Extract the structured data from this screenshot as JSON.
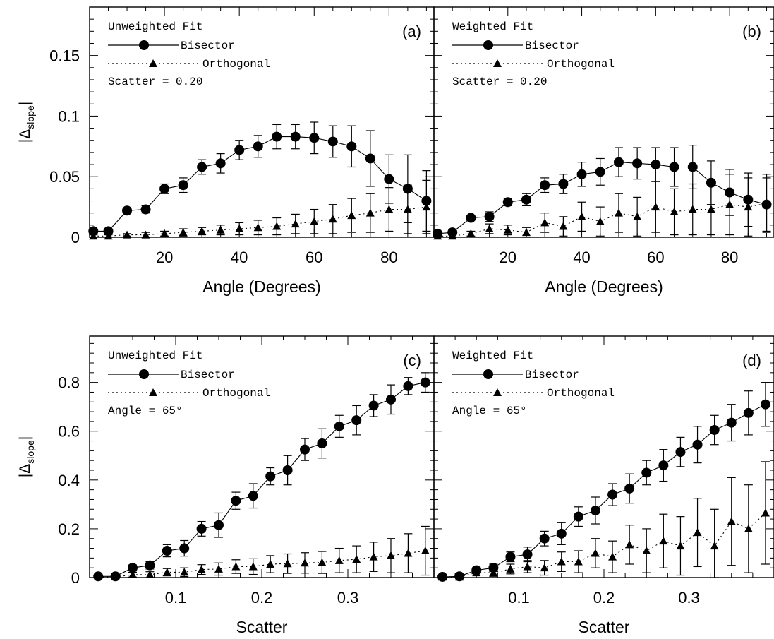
{
  "y_axis_label": {
    "prefix": "|Δ",
    "subscript": "slope",
    "suffix": "|"
  },
  "chart_data": [
    {
      "panel_label": "(a)",
      "type": "line",
      "fit_label": "Unweighted Fit",
      "condition_label": "Scatter = 0.20",
      "xlabel": "Angle (Degrees)",
      "ylabel_shown": true,
      "xlim": [
        0,
        92
      ],
      "ylim": [
        0,
        0.19
      ],
      "xticks": [
        20,
        40,
        60,
        80
      ],
      "xtick_labels": [
        "20",
        "40",
        "60",
        "80"
      ],
      "yticks": [
        0,
        0.05,
        0.1,
        0.15
      ],
      "ytick_labels": [
        "0",
        "0.05",
        "0.1",
        "0.15"
      ],
      "x": [
        1,
        5,
        10,
        15,
        20,
        25,
        30,
        35,
        40,
        45,
        50,
        55,
        60,
        65,
        70,
        75,
        80,
        85,
        90
      ],
      "series": [
        {
          "name": "Bisector",
          "marker": "circle",
          "line": "solid",
          "values": [
            0.005,
            0.005,
            0.022,
            0.023,
            0.04,
            0.043,
            0.058,
            0.061,
            0.072,
            0.075,
            0.083,
            0.083,
            0.082,
            0.079,
            0.075,
            0.065,
            0.048,
            0.04,
            0.03
          ],
          "errors": [
            0.002,
            0.002,
            0.002,
            0.003,
            0.004,
            0.006,
            0.006,
            0.008,
            0.008,
            0.009,
            0.01,
            0.01,
            0.013,
            0.013,
            0.017,
            0.023,
            0.02,
            0.028,
            0.025
          ]
        },
        {
          "name": "Orthogonal",
          "marker": "triangle",
          "line": "dotted",
          "values": [
            0.001,
            0.001,
            0.002,
            0.002,
            0.003,
            0.004,
            0.005,
            0.006,
            0.007,
            0.008,
            0.009,
            0.011,
            0.013,
            0.015,
            0.018,
            0.02,
            0.023,
            0.023,
            0.025
          ],
          "errors": [
            0.001,
            0.001,
            0.001,
            0.002,
            0.002,
            0.003,
            0.003,
            0.004,
            0.005,
            0.006,
            0.007,
            0.008,
            0.01,
            0.012,
            0.014,
            0.016,
            0.018,
            0.02,
            0.022
          ]
        }
      ]
    },
    {
      "panel_label": "(b)",
      "type": "line",
      "fit_label": "Weighted Fit",
      "condition_label": "Scatter = 0.20",
      "xlabel": "Angle (Degrees)",
      "ylabel_shown": false,
      "xlim": [
        0,
        92
      ],
      "ylim": [
        0,
        0.19
      ],
      "xticks": [
        20,
        40,
        60,
        80
      ],
      "xtick_labels": [
        "20",
        "40",
        "60",
        "80"
      ],
      "yticks": [
        0,
        0.05,
        0.1,
        0.15
      ],
      "ytick_labels": [
        "",
        "",
        "",
        ""
      ],
      "x": [
        1,
        5,
        10,
        15,
        20,
        25,
        30,
        35,
        40,
        45,
        50,
        55,
        60,
        65,
        70,
        75,
        80,
        85,
        90
      ],
      "series": [
        {
          "name": "Bisector",
          "marker": "circle",
          "line": "solid",
          "values": [
            0.003,
            0.004,
            0.016,
            0.017,
            0.029,
            0.031,
            0.043,
            0.044,
            0.052,
            0.054,
            0.062,
            0.061,
            0.06,
            0.058,
            0.058,
            0.045,
            0.037,
            0.031,
            0.027
          ],
          "errors": [
            0.002,
            0.002,
            0.002,
            0.004,
            0.003,
            0.005,
            0.006,
            0.008,
            0.01,
            0.011,
            0.012,
            0.013,
            0.014,
            0.016,
            0.018,
            0.018,
            0.019,
            0.022,
            0.022
          ]
        },
        {
          "name": "Orthogonal",
          "marker": "triangle",
          "line": "dotted",
          "values": [
            0.001,
            0.001,
            0.003,
            0.007,
            0.006,
            0.004,
            0.012,
            0.009,
            0.017,
            0.013,
            0.02,
            0.017,
            0.025,
            0.021,
            0.023,
            0.023,
            0.027,
            0.025,
            0.028
          ],
          "errors": [
            0.001,
            0.001,
            0.002,
            0.004,
            0.004,
            0.004,
            0.008,
            0.008,
            0.012,
            0.012,
            0.016,
            0.016,
            0.021,
            0.019,
            0.021,
            0.021,
            0.025,
            0.024,
            0.024
          ]
        }
      ]
    },
    {
      "panel_label": "(c)",
      "type": "line",
      "fit_label": "Unweighted Fit",
      "condition_label": "Angle = 65°",
      "xlabel": "Scatter",
      "ylabel_shown": true,
      "xlim": [
        0,
        0.4
      ],
      "ylim": [
        0,
        0.99
      ],
      "xticks": [
        0.1,
        0.2,
        0.3
      ],
      "xtick_labels": [
        "0.1",
        "0.2",
        "0.3"
      ],
      "yticks": [
        0,
        0.2,
        0.4,
        0.6,
        0.8
      ],
      "ytick_labels": [
        "0",
        "0.2",
        "0.4",
        "0.6",
        "0.8"
      ],
      "x": [
        0.01,
        0.03,
        0.05,
        0.07,
        0.09,
        0.11,
        0.13,
        0.15,
        0.17,
        0.19,
        0.21,
        0.23,
        0.25,
        0.27,
        0.29,
        0.31,
        0.33,
        0.35,
        0.37,
        0.39
      ],
      "series": [
        {
          "name": "Bisector",
          "marker": "circle",
          "line": "solid",
          "values": [
            0.005,
            0.005,
            0.04,
            0.05,
            0.11,
            0.12,
            0.2,
            0.215,
            0.315,
            0.335,
            0.415,
            0.44,
            0.525,
            0.55,
            0.62,
            0.645,
            0.705,
            0.73,
            0.785,
            0.8
          ],
          "errors": [
            0.003,
            0.003,
            0.012,
            0.015,
            0.025,
            0.032,
            0.03,
            0.05,
            0.035,
            0.05,
            0.035,
            0.06,
            0.045,
            0.06,
            0.045,
            0.06,
            0.045,
            0.06,
            0.035,
            0.04
          ]
        },
        {
          "name": "Orthogonal",
          "marker": "triangle",
          "line": "dotted",
          "values": [
            0.003,
            0.003,
            0.012,
            0.012,
            0.022,
            0.022,
            0.033,
            0.035,
            0.045,
            0.045,
            0.055,
            0.057,
            0.06,
            0.062,
            0.07,
            0.075,
            0.085,
            0.09,
            0.1,
            0.11
          ],
          "errors": [
            0.003,
            0.004,
            0.01,
            0.012,
            0.015,
            0.018,
            0.02,
            0.025,
            0.028,
            0.032,
            0.035,
            0.04,
            0.042,
            0.045,
            0.05,
            0.055,
            0.06,
            0.07,
            0.08,
            0.1
          ]
        }
      ]
    },
    {
      "panel_label": "(d)",
      "type": "line",
      "fit_label": "Weighted Fit",
      "condition_label": "Angle = 65°",
      "xlabel": "Scatter",
      "ylabel_shown": false,
      "xlim": [
        0,
        0.4
      ],
      "ylim": [
        0,
        0.99
      ],
      "xticks": [
        0.1,
        0.2,
        0.3
      ],
      "xtick_labels": [
        "0.1",
        "0.2",
        "0.3"
      ],
      "yticks": [
        0,
        0.2,
        0.4,
        0.6,
        0.8
      ],
      "ytick_labels": [
        "",
        "",
        "",
        "",
        ""
      ],
      "x": [
        0.01,
        0.03,
        0.05,
        0.07,
        0.09,
        0.11,
        0.13,
        0.15,
        0.17,
        0.19,
        0.21,
        0.23,
        0.25,
        0.27,
        0.29,
        0.31,
        0.33,
        0.35,
        0.37,
        0.39
      ],
      "series": [
        {
          "name": "Bisector",
          "marker": "circle",
          "line": "solid",
          "values": [
            0.003,
            0.005,
            0.03,
            0.04,
            0.085,
            0.095,
            0.16,
            0.18,
            0.25,
            0.275,
            0.34,
            0.365,
            0.43,
            0.46,
            0.515,
            0.545,
            0.605,
            0.635,
            0.675,
            0.71
          ],
          "errors": [
            0.003,
            0.004,
            0.012,
            0.015,
            0.02,
            0.03,
            0.03,
            0.045,
            0.04,
            0.055,
            0.045,
            0.06,
            0.05,
            0.065,
            0.06,
            0.075,
            0.06,
            0.075,
            0.09,
            0.09
          ]
        },
        {
          "name": "Orthogonal",
          "marker": "triangle",
          "line": "dotted",
          "values": [
            0.002,
            0.002,
            0.02,
            0.02,
            0.035,
            0.045,
            0.04,
            0.065,
            0.065,
            0.1,
            0.085,
            0.135,
            0.11,
            0.15,
            0.13,
            0.185,
            0.13,
            0.23,
            0.2,
            0.265
          ],
          "errors": [
            0.002,
            0.003,
            0.01,
            0.015,
            0.02,
            0.025,
            0.03,
            0.04,
            0.045,
            0.06,
            0.065,
            0.08,
            0.09,
            0.11,
            0.12,
            0.14,
            0.15,
            0.18,
            0.18,
            0.21
          ]
        }
      ]
    }
  ]
}
